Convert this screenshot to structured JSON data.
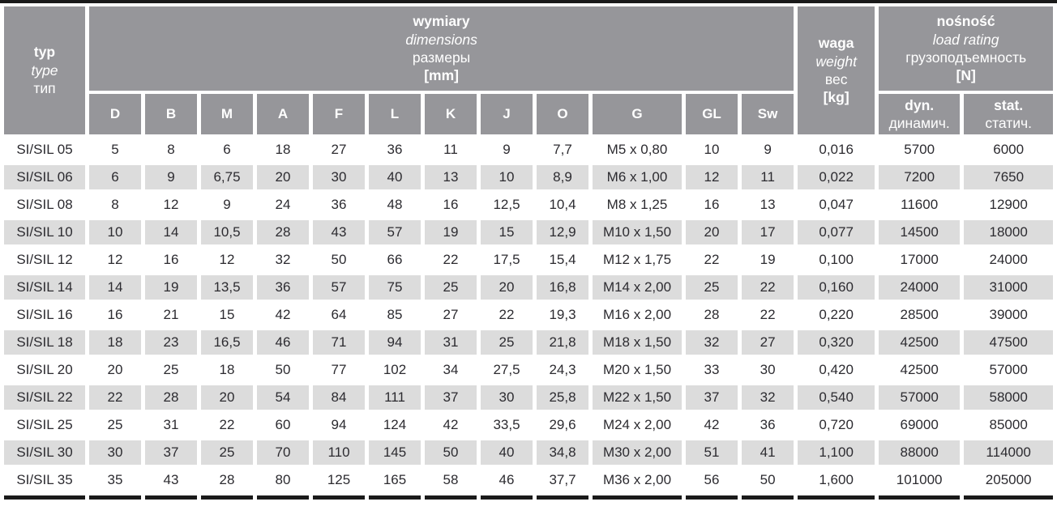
{
  "colors": {
    "header_bg": "#96969a",
    "header_text": "#ffffff",
    "stripe_bg": "#dcdcdc",
    "body_text": "#2c2b30",
    "bar": "#1a1a1a",
    "gutter": "#ffffff"
  },
  "header": {
    "typ": {
      "pl": "typ",
      "en": "type",
      "ru": "тип"
    },
    "dimensions": {
      "pl": "wymiary",
      "en": "dimensions",
      "ru": "размеры",
      "unit": "[mm]"
    },
    "weight": {
      "pl": "waga",
      "en": "weight",
      "ru": "вес",
      "unit": "[kg]"
    },
    "load": {
      "pl": "nośność",
      "en": "load rating",
      "ru": "грузоподъемность",
      "unit": "[N]"
    },
    "dim_cols": [
      "D",
      "B",
      "M",
      "A",
      "F",
      "L",
      "K",
      "J",
      "O",
      "G",
      "GL",
      "Sw"
    ],
    "load_cols": [
      {
        "latin": "dyn.",
        "cyr": "динамич."
      },
      {
        "latin": "stat.",
        "cyr": "статич."
      }
    ]
  },
  "rows": [
    {
      "type": "SI/SIL 05",
      "values": [
        "5",
        "8",
        "6",
        "18",
        "27",
        "36",
        "11",
        "9",
        "7,7",
        "M5 x 0,80",
        "10",
        "9",
        "0,016",
        "5700",
        "6000"
      ]
    },
    {
      "type": "SI/SIL 06",
      "values": [
        "6",
        "9",
        "6,75",
        "20",
        "30",
        "40",
        "13",
        "10",
        "8,9",
        "M6 x 1,00",
        "12",
        "11",
        "0,022",
        "7200",
        "7650"
      ]
    },
    {
      "type": "SI/SIL 08",
      "values": [
        "8",
        "12",
        "9",
        "24",
        "36",
        "48",
        "16",
        "12,5",
        "10,4",
        "M8 x 1,25",
        "16",
        "13",
        "0,047",
        "11600",
        "12900"
      ]
    },
    {
      "type": "SI/SIL 10",
      "values": [
        "10",
        "14",
        "10,5",
        "28",
        "43",
        "57",
        "19",
        "15",
        "12,9",
        "M10 x 1,50",
        "20",
        "17",
        "0,077",
        "14500",
        "18000"
      ]
    },
    {
      "type": "SI/SIL 12",
      "values": [
        "12",
        "16",
        "12",
        "32",
        "50",
        "66",
        "22",
        "17,5",
        "15,4",
        "M12 x 1,75",
        "22",
        "19",
        "0,100",
        "17000",
        "24000"
      ]
    },
    {
      "type": "SI/SIL 14",
      "values": [
        "14",
        "19",
        "13,5",
        "36",
        "57",
        "75",
        "25",
        "20",
        "16,8",
        "M14 x 2,00",
        "25",
        "22",
        "0,160",
        "24000",
        "31000"
      ]
    },
    {
      "type": "SI/SIL 16",
      "values": [
        "16",
        "21",
        "15",
        "42",
        "64",
        "85",
        "27",
        "22",
        "19,3",
        "M16 x 2,00",
        "28",
        "22",
        "0,220",
        "28500",
        "39000"
      ]
    },
    {
      "type": "SI/SIL 18",
      "values": [
        "18",
        "23",
        "16,5",
        "46",
        "71",
        "94",
        "31",
        "25",
        "21,8",
        "M18 x 1,50",
        "32",
        "27",
        "0,320",
        "42500",
        "47500"
      ]
    },
    {
      "type": "SI/SIL 20",
      "values": [
        "20",
        "25",
        "18",
        "50",
        "77",
        "102",
        "34",
        "27,5",
        "24,3",
        "M20 x 1,50",
        "33",
        "30",
        "0,420",
        "42500",
        "57000"
      ]
    },
    {
      "type": "SI/SIL 22",
      "values": [
        "22",
        "28",
        "20",
        "54",
        "84",
        "111",
        "37",
        "30",
        "25,8",
        "M22 x 1,50",
        "37",
        "32",
        "0,540",
        "57000",
        "58000"
      ]
    },
    {
      "type": "SI/SIL 25",
      "values": [
        "25",
        "31",
        "22",
        "60",
        "94",
        "124",
        "42",
        "33,5",
        "29,6",
        "M24 x 2,00",
        "42",
        "36",
        "0,720",
        "69000",
        "85000"
      ]
    },
    {
      "type": "SI/SIL 30",
      "values": [
        "30",
        "37",
        "25",
        "70",
        "110",
        "145",
        "50",
        "40",
        "34,8",
        "M30 x 2,00",
        "51",
        "41",
        "1,100",
        "88000",
        "114000"
      ]
    },
    {
      "type": "SI/SIL 35",
      "values": [
        "35",
        "43",
        "28",
        "80",
        "125",
        "165",
        "58",
        "46",
        "37,7",
        "M36 x 2,00",
        "56",
        "50",
        "1,600",
        "101000",
        "205000"
      ]
    }
  ]
}
